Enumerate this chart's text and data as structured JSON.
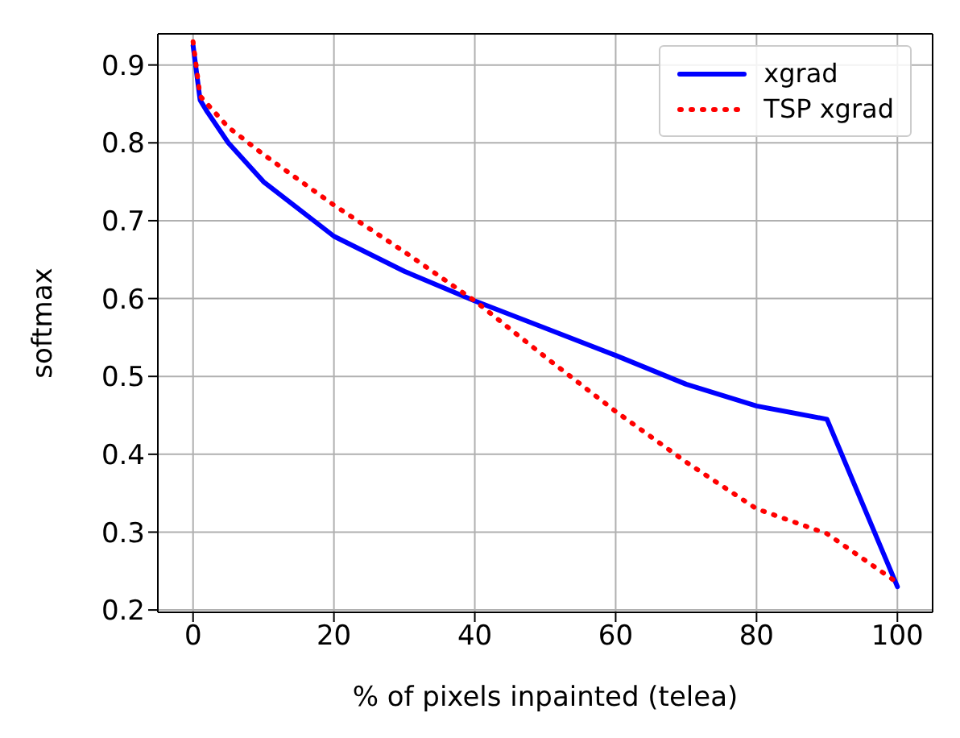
{
  "chart_data": {
    "type": "line",
    "xlabel": "% of pixels inpainted (telea)",
    "ylabel": "softmax",
    "x": [
      0,
      1,
      2,
      5,
      10,
      20,
      30,
      40,
      50,
      60,
      70,
      80,
      90,
      100
    ],
    "series": [
      {
        "name": "xgrad",
        "color": "#0000ff",
        "line_style": "solid",
        "values": [
          0.925,
          0.855,
          0.84,
          0.8,
          0.75,
          0.68,
          0.635,
          0.597,
          0.562,
          0.527,
          0.49,
          0.462,
          0.445,
          0.23
        ]
      },
      {
        "name": "TSP xgrad",
        "color": "#ff0000",
        "line_style": "dotted",
        "values": [
          0.93,
          0.86,
          0.85,
          0.82,
          0.785,
          0.72,
          0.66,
          0.597,
          0.525,
          0.455,
          0.39,
          0.33,
          0.298,
          0.235
        ]
      }
    ],
    "xlim": [
      -5,
      105
    ],
    "xticks": [
      0,
      20,
      40,
      60,
      80,
      100
    ],
    "ylim": [
      0.197,
      0.94
    ],
    "yticks": [
      0.2,
      0.3,
      0.4,
      0.5,
      0.6,
      0.7,
      0.8,
      0.9
    ],
    "grid": true,
    "legend": "top right",
    "marker": "none"
  }
}
